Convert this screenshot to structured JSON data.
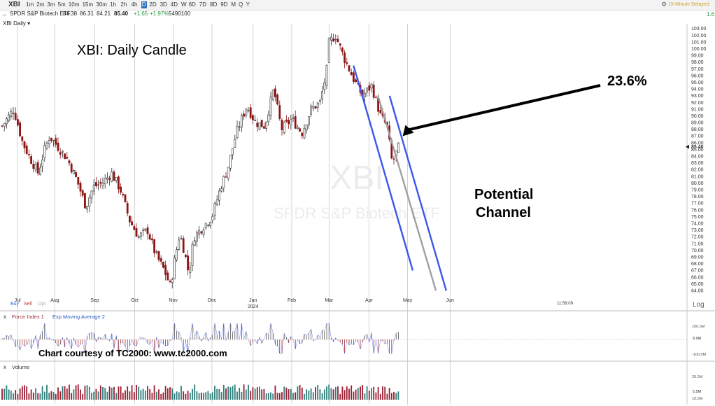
{
  "toolbar": {
    "symbol": "XBI",
    "timeframes": [
      "1m",
      "2m",
      "3m",
      "5m",
      "10m",
      "15m",
      "30m",
      "1h",
      "2h",
      "4h",
      "D",
      "2D",
      "3D",
      "4D",
      "W",
      "6D",
      "7D",
      "8D",
      "9D",
      "M",
      "Q",
      "Y"
    ],
    "active_timeframe": "D",
    "delay_label": "15-Minute Delayed",
    "right_value": "1.6"
  },
  "quote": {
    "name": "SPDR S&P Biotech ETF",
    "open": "84.38",
    "high": "86.31",
    "low": "84.21",
    "close": "85.40",
    "change": "+1.65",
    "change_pct": "+1.97%",
    "volume": "5490100"
  },
  "pane_title": "XBI Daily",
  "buy_label": "Buy",
  "sell_label": "Sell",
  "opt_label": "Opt",
  "log_label": "Log",
  "time_label": "11:58:09",
  "annotations": {
    "title": "XBI:  Daily Candle",
    "pct": "23.6%",
    "channel_line1": "Potential",
    "channel_line2": "Channel",
    "courtesy": "Chart courtesy of TC2000:  www.tc2000.com"
  },
  "watermark": {
    "symbol": "XBI",
    "name": "SPDR S&P Biotech ETF"
  },
  "indicators": {
    "force": {
      "name": "Force Index 1",
      "ema": "Exp Moving Average 2",
      "ticks": [
        "100.0M",
        "-100.0M"
      ],
      "current": "8.9M"
    },
    "volume": {
      "name": "Volume",
      "ticks": [
        "20.0M",
        "10.0M"
      ],
      "current": "5.5M"
    }
  },
  "colors": {
    "up": "#2a2a2a",
    "down": "#8b1414",
    "channel": "#3b57e8",
    "midline": "#a0a0a0",
    "volume": "#2e7d7a",
    "grid": "#c8c8c8"
  },
  "chart_data": {
    "type": "candlestick",
    "symbol": "XBI",
    "period": "Daily",
    "x_months": [
      "Jul",
      "Aug",
      "Sep",
      "Oct",
      "Nov",
      "Dec",
      "Jan",
      "Feb",
      "Mar",
      "Apr",
      "May",
      "Jun"
    ],
    "x_year_label": "2024",
    "y_range": [
      63.5,
      103.3
    ],
    "y_ticks": [
      64,
      65,
      66,
      67,
      68,
      69,
      70,
      71,
      72,
      73,
      74,
      75,
      76,
      77,
      78,
      79,
      80,
      81,
      82,
      83,
      84,
      85,
      86,
      87,
      88,
      89,
      90,
      91,
      92,
      93,
      94,
      95,
      96,
      97,
      98,
      99,
      100,
      101,
      102,
      103
    ],
    "last_price": 85.4,
    "price_path": [
      [
        "2023-06-21",
        88.5
      ],
      [
        "2023-06-30",
        91.0
      ],
      [
        "2023-07-07",
        86.0
      ],
      [
        "2023-07-12",
        84.0
      ],
      [
        "2023-07-19",
        81.5
      ],
      [
        "2023-07-24",
        85.0
      ],
      [
        "2023-07-28",
        87.0
      ],
      [
        "2023-08-03",
        85.5
      ],
      [
        "2023-08-11",
        83.5
      ],
      [
        "2023-08-18",
        80.5
      ],
      [
        "2023-08-25",
        76.5
      ],
      [
        "2023-08-31",
        79.5
      ],
      [
        "2023-09-07",
        80.0
      ],
      [
        "2023-09-14",
        81.5
      ],
      [
        "2023-09-21",
        79.0
      ],
      [
        "2023-09-28",
        74.5
      ],
      [
        "2023-10-05",
        72.0
      ],
      [
        "2023-10-12",
        73.0
      ],
      [
        "2023-10-18",
        69.5
      ],
      [
        "2023-10-25",
        67.0
      ],
      [
        "2023-10-30",
        64.5
      ],
      [
        "2023-11-01",
        67.5
      ],
      [
        "2023-11-06",
        72.5
      ],
      [
        "2023-11-10",
        69.5
      ],
      [
        "2023-11-13",
        66.5
      ],
      [
        "2023-11-17",
        72.0
      ],
      [
        "2023-11-24",
        73.5
      ],
      [
        "2023-12-01",
        75.0
      ],
      [
        "2023-12-08",
        79.5
      ],
      [
        "2023-12-13",
        82.0
      ],
      [
        "2023-12-20",
        87.5
      ],
      [
        "2023-12-28",
        91.5
      ],
      [
        "2024-01-04",
        89.0
      ],
      [
        "2024-01-11",
        88.5
      ],
      [
        "2024-01-18",
        94.0
      ],
      [
        "2024-01-24",
        88.0
      ],
      [
        "2024-02-01",
        89.5
      ],
      [
        "2024-02-09",
        87.5
      ],
      [
        "2024-02-16",
        91.0
      ],
      [
        "2024-02-23",
        92.0
      ],
      [
        "2024-02-28",
        96.5
      ],
      [
        "2024-03-01",
        101.0
      ],
      [
        "2024-03-06",
        102.0
      ],
      [
        "2024-03-13",
        98.5
      ],
      [
        "2024-03-20",
        95.5
      ],
      [
        "2024-03-27",
        93.0
      ],
      [
        "2024-04-03",
        94.5
      ],
      [
        "2024-04-10",
        90.0
      ],
      [
        "2024-04-15",
        88.5
      ],
      [
        "2024-04-19",
        83.0
      ],
      [
        "2024-04-24",
        85.4
      ]
    ],
    "overlays": {
      "channel_upper": [
        [
          "2024-04-17",
          93.0
        ],
        [
          "2024-05-31",
          64.0
        ]
      ],
      "channel_lower": [
        [
          "2024-03-20",
          97.5
        ],
        [
          "2024-05-05",
          67.0
        ]
      ],
      "channel_mid": [
        [
          "2024-04-08",
          93.0
        ],
        [
          "2024-05-23",
          64.0
        ]
      ],
      "arrow_to": [
        "2024-04-25",
        87.0
      ]
    },
    "force_index": {
      "ticks": [
        100000000,
        -100000000
      ],
      "current": 8900000
    },
    "volume": {
      "ticks": [
        20000000,
        10000000
      ],
      "current": 5500000
    }
  }
}
